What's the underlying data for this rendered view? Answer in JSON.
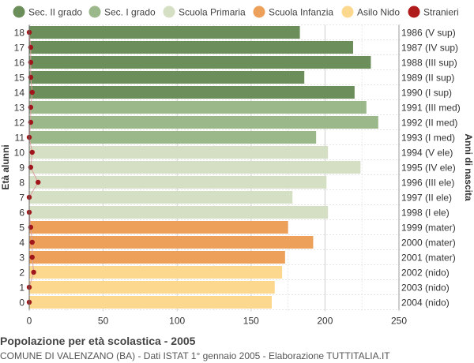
{
  "chart_data": {
    "type": "bar",
    "orientation": "horizontal",
    "title": "Popolazione per età scolastica - 2005",
    "subtitle": "COMUNE DI VALENZANO (BA) - Dati ISTAT 1° gennaio 2005 - Elaborazione TUTTITALIA.IT",
    "ylabel_left": "Età alunni",
    "ylabel_right": "Anni di nascita",
    "xlim": [
      0,
      250
    ],
    "xticks": [
      0,
      50,
      100,
      150,
      200,
      250
    ],
    "grid": true,
    "legend_position": "top",
    "legend": [
      {
        "label": "Sec. II grado",
        "color": "#6b8e5a"
      },
      {
        "label": "Sec. I grado",
        "color": "#9bb88a"
      },
      {
        "label": "Scuola Primaria",
        "color": "#d4dfc4"
      },
      {
        "label": "Scuola Infanzia",
        "color": "#eda05a"
      },
      {
        "label": "Asilo Nido",
        "color": "#fcd88e"
      },
      {
        "label": "Stranieri",
        "color": "#b01c1c"
      }
    ],
    "rows": [
      {
        "age": "18",
        "birth": "1986 (V sup)",
        "value": 183,
        "stranieri": 0,
        "group": 0
      },
      {
        "age": "17",
        "birth": "1987 (IV sup)",
        "value": 219,
        "stranieri": 1,
        "group": 0
      },
      {
        "age": "16",
        "birth": "1988 (III sup)",
        "value": 231,
        "stranieri": 1,
        "group": 0
      },
      {
        "age": "15",
        "birth": "1989 (II sup)",
        "value": 186,
        "stranieri": 1,
        "group": 0
      },
      {
        "age": "14",
        "birth": "1990 (I sup)",
        "value": 220,
        "stranieri": 2,
        "group": 0
      },
      {
        "age": "13",
        "birth": "1991 (III med)",
        "value": 228,
        "stranieri": 1,
        "group": 1
      },
      {
        "age": "12",
        "birth": "1992 (II med)",
        "value": 236,
        "stranieri": 1,
        "group": 1
      },
      {
        "age": "11",
        "birth": "1993 (I med)",
        "value": 194,
        "stranieri": 0,
        "group": 1
      },
      {
        "age": "10",
        "birth": "1994 (V ele)",
        "value": 202,
        "stranieri": 2,
        "group": 2
      },
      {
        "age": "9",
        "birth": "1995 (IV ele)",
        "value": 224,
        "stranieri": 1,
        "group": 2
      },
      {
        "age": "8",
        "birth": "1996 (III ele)",
        "value": 201,
        "stranieri": 6,
        "group": 2
      },
      {
        "age": "7",
        "birth": "1997 (II ele)",
        "value": 178,
        "stranieri": 0,
        "group": 2
      },
      {
        "age": "6",
        "birth": "1998 (I ele)",
        "value": 202,
        "stranieri": 0,
        "group": 2
      },
      {
        "age": "5",
        "birth": "1999 (mater)",
        "value": 175,
        "stranieri": 1,
        "group": 3
      },
      {
        "age": "4",
        "birth": "2000 (mater)",
        "value": 192,
        "stranieri": 2,
        "group": 3
      },
      {
        "age": "3",
        "birth": "2001 (mater)",
        "value": 173,
        "stranieri": 2,
        "group": 3
      },
      {
        "age": "2",
        "birth": "2002 (nido)",
        "value": 171,
        "stranieri": 3,
        "group": 4
      },
      {
        "age": "1",
        "birth": "2003 (nido)",
        "value": 166,
        "stranieri": 0,
        "group": 4
      },
      {
        "age": "0",
        "birth": "2004 (nido)",
        "value": 164,
        "stranieri": 0,
        "group": 4
      }
    ]
  }
}
